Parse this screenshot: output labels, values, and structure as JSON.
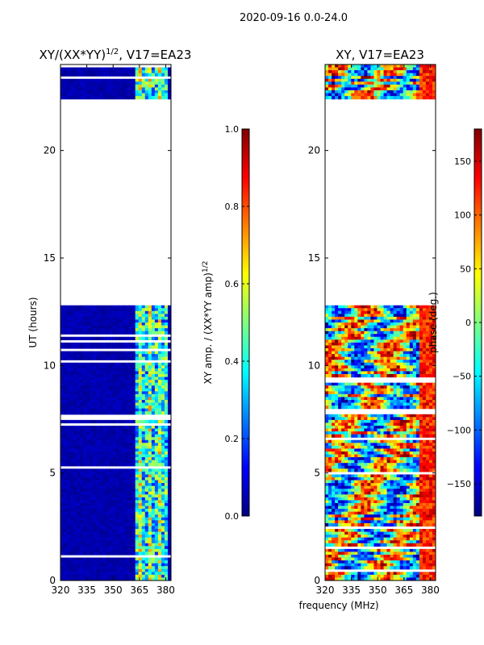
{
  "figure": {
    "suptitle": "2020-09-16 0.0-24.0",
    "shared_xlabel": "frequency (MHz)"
  },
  "colormap": {
    "name": "jet",
    "stops": [
      "#00007f",
      "#0000ff",
      "#007fff",
      "#00ffff",
      "#7fff7f",
      "#ffff00",
      "#ff7f00",
      "#ff0000",
      "#7f0000"
    ]
  },
  "chart_data": [
    {
      "type": "heatmap",
      "title": "XY/(XX*YY)^{1/2}, V17=EA23",
      "title_main": "XY/(XX*YY)",
      "title_sup": "1/2",
      "title_rest": ", V17=EA23",
      "xlabel": "",
      "ylabel": "UT (hours)",
      "xlim": [
        320,
        383
      ],
      "ylim": [
        0,
        24
      ],
      "xticks": [
        320,
        335,
        350,
        365,
        380
      ],
      "yticks": [
        0,
        5,
        10,
        15,
        20
      ],
      "data_gap_hours": [
        12.8,
        22.4
      ],
      "colorbar": {
        "label_main": "XY amp. / (XX*YY amp)",
        "label_sup": "1/2",
        "range": [
          0.0,
          1.0
        ],
        "ticks": [
          "0.0",
          "0.2",
          "0.4",
          "0.6",
          "0.8",
          "1.0"
        ]
      }
    },
    {
      "type": "heatmap",
      "title": "XY, V17=EA23",
      "xlabel": "frequency (MHz)",
      "ylabel": "",
      "xlim": [
        320,
        383
      ],
      "ylim": [
        0,
        24
      ],
      "xticks": [
        320,
        335,
        350,
        365,
        380
      ],
      "yticks": [
        0,
        5,
        10,
        15,
        20
      ],
      "data_gap_hours": [
        12.8,
        22.4
      ],
      "colorbar": {
        "label": "phase (deg.)",
        "range": [
          -180,
          180
        ],
        "ticks": [
          "150",
          "100",
          "50",
          "0",
          "−50",
          "−100",
          "−150"
        ],
        "tick_values": [
          150,
          100,
          50,
          0,
          -50,
          -100,
          -150
        ]
      }
    }
  ]
}
